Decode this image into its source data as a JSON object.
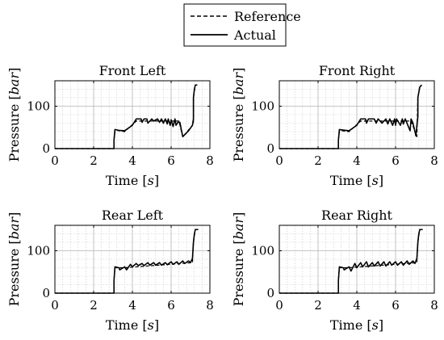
{
  "legend": {
    "entries": [
      {
        "label": "Reference",
        "style": "dashed"
      },
      {
        "label": "Actual",
        "style": "solid"
      }
    ],
    "placement": "top-center"
  },
  "chart_data": [
    {
      "type": "line",
      "title": "Front Left",
      "xlabel": "Time [s]",
      "ylabel": "Pressure [bar]",
      "xlim": [
        0,
        8
      ],
      "ylim": [
        0,
        160
      ],
      "xticks": [
        "0",
        "2",
        "4",
        "6",
        "8"
      ],
      "yticks": [
        "0",
        "100"
      ],
      "grid": "major and minor, dotted",
      "series": [
        {
          "name": "Reference",
          "style": "dashed",
          "x": [
            0,
            3.05,
            3.05,
            3.1,
            3.2,
            3.6,
            4.2,
            4.5,
            4.6,
            6.4,
            6.6,
            7.1,
            7.15,
            7.15,
            7.25,
            7.35
          ],
          "y": [
            0,
            0,
            20,
            40,
            43,
            40,
            65,
            65,
            65,
            65,
            28,
            55,
            62,
            120,
            150,
            150
          ]
        },
        {
          "name": "Actual",
          "style": "solid",
          "x": [
            0,
            3.05,
            3.05,
            3.1,
            3.2,
            3.3,
            3.6,
            4.0,
            4.2,
            4.45,
            4.5,
            4.6,
            4.75,
            4.8,
            5.0,
            5.1,
            5.3,
            5.4,
            5.5,
            5.6,
            5.7,
            5.8,
            5.85,
            5.95,
            6.0,
            6.1,
            6.2,
            6.25,
            6.35,
            6.45,
            6.6,
            6.9,
            7.1,
            7.15,
            7.15,
            7.2,
            7.25,
            7.35
          ],
          "y": [
            0,
            0,
            20,
            45,
            44,
            43,
            42,
            55,
            70,
            70,
            62,
            70,
            70,
            60,
            70,
            65,
            70,
            62,
            70,
            60,
            70,
            58,
            70,
            55,
            68,
            52,
            70,
            55,
            62,
            62,
            28,
            42,
            55,
            70,
            120,
            140,
            150,
            150
          ]
        }
      ]
    },
    {
      "type": "line",
      "title": "Front Right",
      "xlabel": "Time [s]",
      "ylabel": "Pressure [bar]",
      "xlim": [
        0,
        8
      ],
      "ylim": [
        0,
        160
      ],
      "xticks": [
        "0",
        "2",
        "4",
        "6",
        "8"
      ],
      "yticks": [
        "0",
        "100"
      ],
      "grid": "major and minor, dotted",
      "series": [
        {
          "name": "Reference",
          "style": "dashed",
          "x": [
            0,
            3.05,
            3.05,
            3.1,
            3.25,
            3.6,
            4.2,
            6.8,
            7.05,
            7.1,
            7.15,
            7.25,
            7.35
          ],
          "y": [
            0,
            0,
            20,
            40,
            42,
            40,
            65,
            65,
            35,
            28,
            120,
            148,
            150
          ]
        },
        {
          "name": "Actual",
          "style": "solid",
          "x": [
            0,
            3.05,
            3.05,
            3.1,
            3.25,
            3.6,
            4.0,
            4.2,
            4.45,
            4.5,
            4.6,
            4.9,
            5.0,
            5.1,
            5.3,
            5.5,
            5.6,
            5.7,
            5.85,
            5.95,
            6.0,
            6.05,
            6.25,
            6.35,
            6.4,
            6.5,
            6.75,
            6.8,
            6.9,
            7.05,
            7.1,
            7.15,
            7.15,
            7.25,
            7.35
          ],
          "y": [
            0,
            0,
            20,
            45,
            44,
            42,
            55,
            70,
            70,
            60,
            70,
            70,
            60,
            70,
            60,
            70,
            58,
            70,
            55,
            70,
            55,
            70,
            55,
            70,
            58,
            70,
            42,
            70,
            60,
            30,
            55,
            75,
            120,
            145,
            150
          ]
        }
      ]
    },
    {
      "type": "line",
      "title": "Rear Left",
      "xlabel": "Time [s]",
      "ylabel": "Pressure [bar]",
      "xlim": [
        0,
        8
      ],
      "ylim": [
        0,
        160
      ],
      "xticks": [
        "0",
        "2",
        "4",
        "6",
        "8"
      ],
      "yticks": [
        "0",
        "100"
      ],
      "grid": "major and minor, dotted",
      "series": [
        {
          "name": "Reference",
          "style": "dashed",
          "x": [
            0,
            3.05,
            3.05,
            3.1,
            3.3,
            3.6,
            7.1,
            7.15,
            7.25,
            7.4
          ],
          "y": [
            0,
            0,
            30,
            60,
            60,
            60,
            72,
            120,
            150,
            150
          ]
        },
        {
          "name": "Actual",
          "style": "solid",
          "x": [
            0,
            3.05,
            3.05,
            3.1,
            3.3,
            3.35,
            3.6,
            3.7,
            3.9,
            4.0,
            4.2,
            4.3,
            4.5,
            4.6,
            4.8,
            4.9,
            5.1,
            5.2,
            5.4,
            5.5,
            5.7,
            5.8,
            6.0,
            6.1,
            6.3,
            6.4,
            6.6,
            6.7,
            6.9,
            7.0,
            7.1,
            7.15,
            7.2,
            7.25,
            7.4
          ],
          "y": [
            0,
            0,
            30,
            62,
            60,
            55,
            62,
            55,
            68,
            62,
            70,
            65,
            70,
            65,
            72,
            66,
            72,
            66,
            72,
            66,
            72,
            67,
            74,
            68,
            74,
            68,
            76,
            70,
            76,
            72,
            82,
            120,
            140,
            150,
            150
          ]
        }
      ]
    },
    {
      "type": "line",
      "title": "Rear Right",
      "xlabel": "Time [s]",
      "ylabel": "Pressure [bar]",
      "xlim": [
        0,
        8
      ],
      "ylim": [
        0,
        160
      ],
      "xticks": [
        "0",
        "2",
        "4",
        "6",
        "8"
      ],
      "yticks": [
        "0",
        "100"
      ],
      "grid": "major and minor, dotted",
      "series": [
        {
          "name": "Reference",
          "style": "dashed",
          "x": [
            0,
            3.05,
            3.05,
            3.1,
            3.3,
            3.6,
            7.1,
            7.15,
            7.25,
            7.4
          ],
          "y": [
            0,
            0,
            30,
            60,
            60,
            60,
            72,
            120,
            150,
            150
          ]
        },
        {
          "name": "Actual",
          "style": "solid",
          "x": [
            0,
            3.05,
            3.05,
            3.1,
            3.3,
            3.35,
            3.6,
            3.7,
            3.9,
            4.0,
            4.2,
            4.3,
            4.5,
            4.6,
            4.8,
            4.9,
            5.1,
            5.2,
            5.4,
            5.5,
            5.7,
            5.8,
            6.0,
            6.1,
            6.3,
            6.4,
            6.6,
            6.7,
            6.9,
            7.0,
            7.1,
            7.15,
            7.2,
            7.25,
            7.4
          ],
          "y": [
            0,
            0,
            30,
            62,
            60,
            55,
            62,
            52,
            70,
            60,
            72,
            62,
            74,
            62,
            72,
            64,
            74,
            64,
            74,
            64,
            74,
            66,
            74,
            66,
            74,
            66,
            76,
            68,
            76,
            70,
            82,
            120,
            140,
            150,
            150
          ]
        }
      ]
    }
  ]
}
